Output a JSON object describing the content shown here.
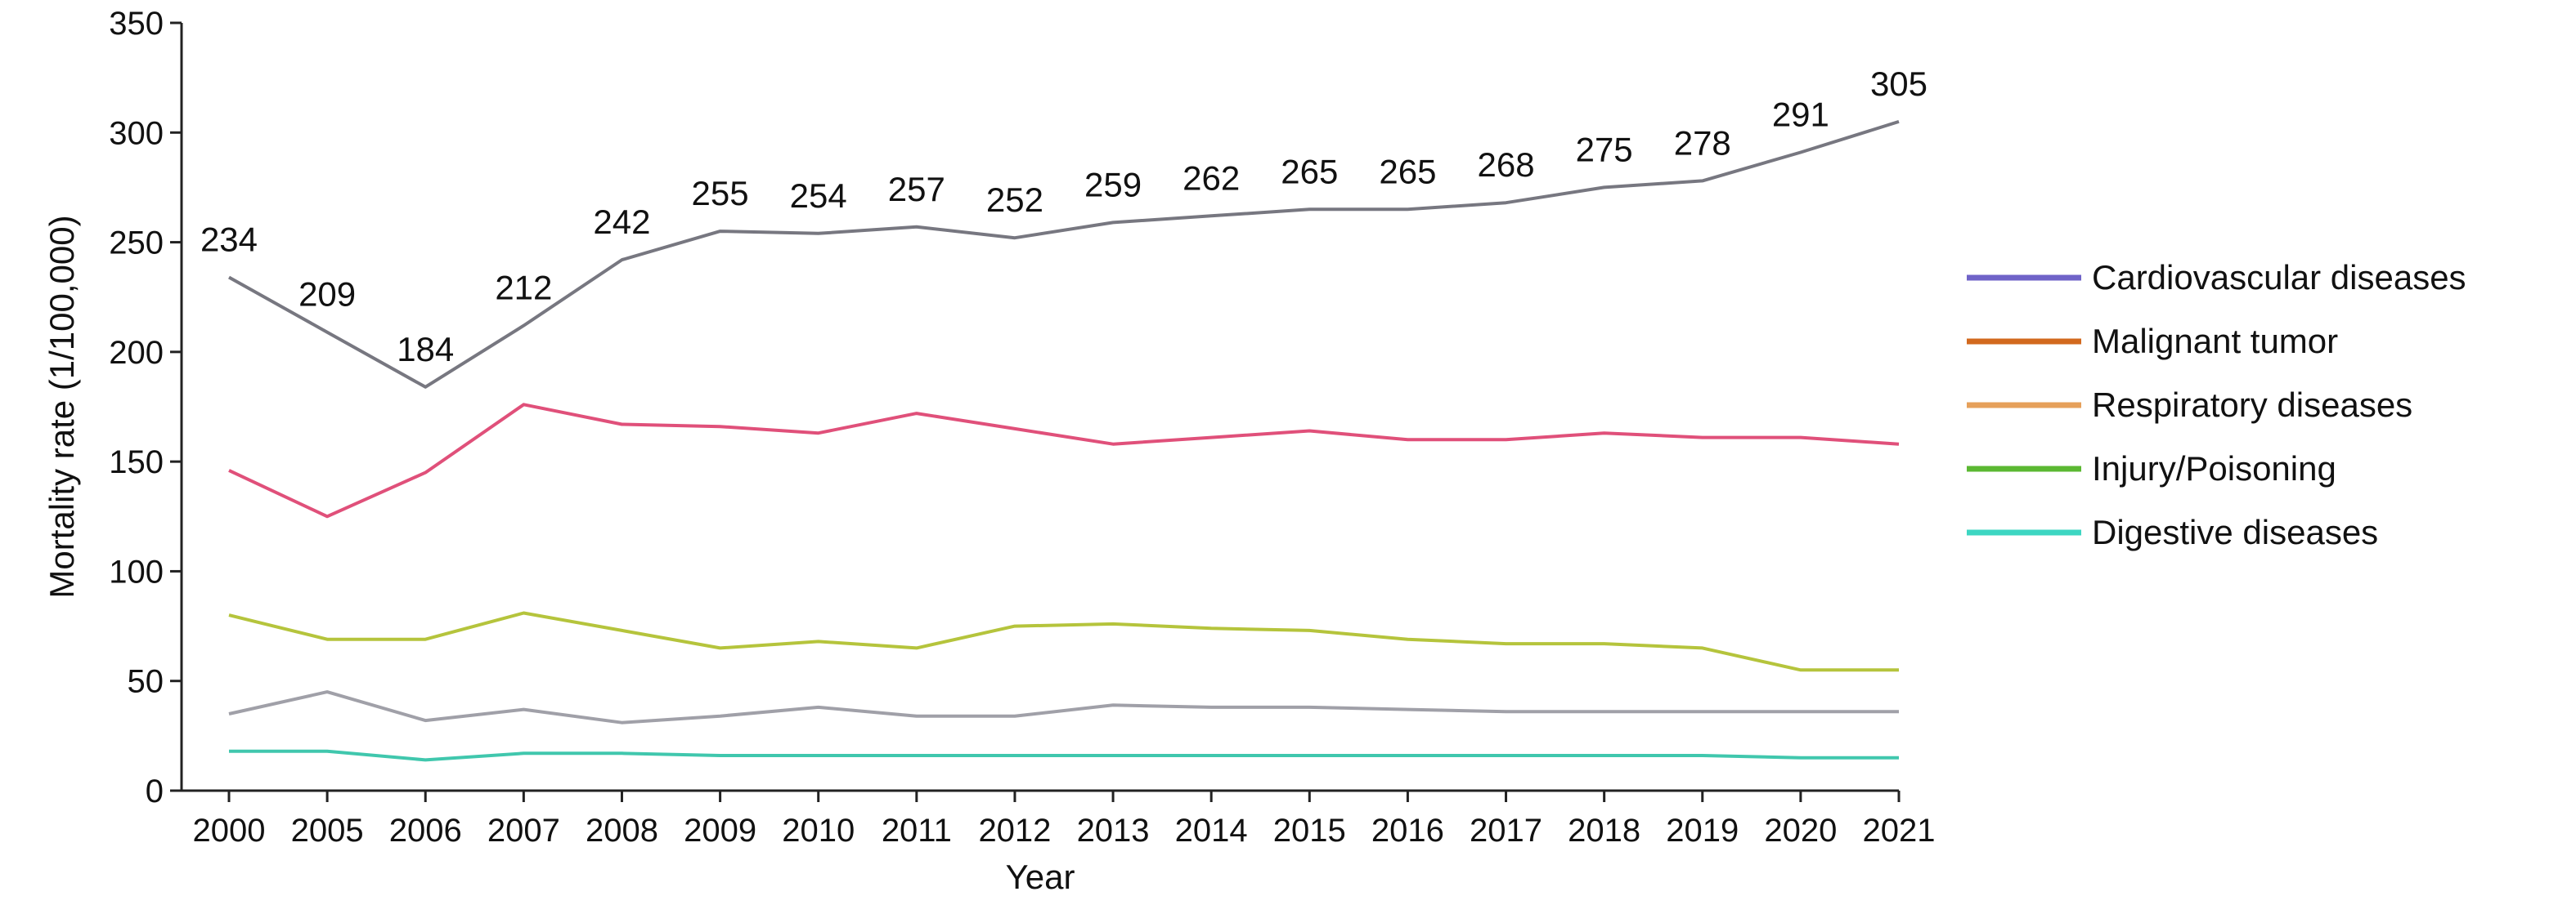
{
  "chart_data": {
    "type": "line",
    "xlabel": "Year",
    "ylabel": "Mortality rate (1/100,000)",
    "ylim": [
      0,
      350
    ],
    "yticks": [
      0,
      50,
      100,
      150,
      200,
      250,
      300,
      350
    ],
    "categories": [
      "2000",
      "2005",
      "2006",
      "2007",
      "2008",
      "2009",
      "2010",
      "2011",
      "2012",
      "2013",
      "2014",
      "2015",
      "2016",
      "2017",
      "2018",
      "2019",
      "2020",
      "2021"
    ],
    "grid": false,
    "legend_position": "right",
    "series": [
      {
        "name": "Cardiovascular diseases",
        "legend_color": "#6f63c8",
        "values": [
          234,
          209,
          184,
          212,
          242,
          255,
          254,
          257,
          252,
          259,
          262,
          265,
          265,
          268,
          275,
          278,
          291,
          305
        ]
      },
      {
        "name": "Malignant tumor",
        "legend_color": "#d2691e",
        "values": [
          146,
          125,
          145,
          176,
          167,
          166,
          163,
          172,
          165,
          158,
          161,
          164,
          160,
          160,
          163,
          161,
          161,
          158
        ]
      },
      {
        "name": "Respiratory diseases",
        "legend_color": "#e6a05a",
        "values": [
          80,
          69,
          69,
          81,
          73,
          65,
          68,
          65,
          75,
          76,
          74,
          73,
          69,
          67,
          67,
          65,
          55,
          55
        ]
      },
      {
        "name": "Injury/Poisoning",
        "legend_color": "#5bb832",
        "values": [
          35,
          45,
          32,
          37,
          31,
          34,
          38,
          34,
          34,
          39,
          38,
          38,
          37,
          36,
          36,
          36,
          36,
          36
        ]
      },
      {
        "name": "Digestive diseases",
        "legend_color": "#3dd6c2",
        "values": [
          18,
          18,
          14,
          17,
          17,
          16,
          16,
          16,
          16,
          16,
          16,
          16,
          16,
          16,
          16,
          16,
          15,
          15
        ]
      }
    ],
    "data_labels_series": 0,
    "data_labels": [
      "234",
      "209",
      "184",
      "212",
      "242",
      "255",
      "254",
      "257",
      "252",
      "259",
      "262",
      "265",
      "265",
      "268",
      "275",
      "278",
      "291",
      "305"
    ]
  }
}
